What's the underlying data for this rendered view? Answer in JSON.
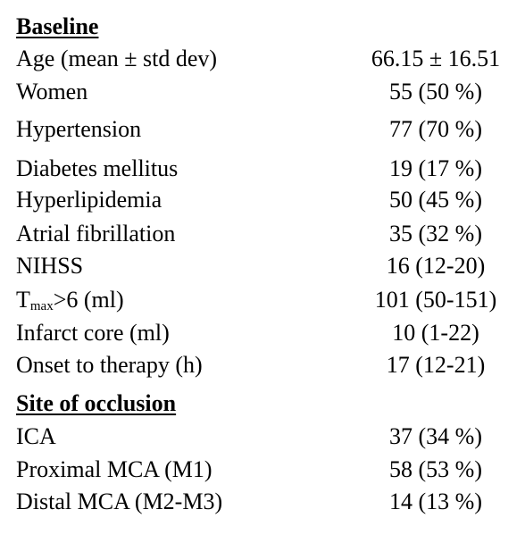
{
  "sections": [
    {
      "heading": "Baseline",
      "rows": [
        {
          "label": "Age (mean ± std dev)",
          "value": "66.15 ± 16.51"
        },
        {
          "label": "Women",
          "value": "55 (50 %)"
        },
        {
          "label": "Hypertension",
          "value": "77 (70 %)"
        },
        {
          "label": "Diabetes mellitus",
          "value": "19 (17 %)"
        },
        {
          "label": "Hyperlipidemia",
          "value": "50 (45 %)"
        },
        {
          "label": "Atrial fibrillation",
          "value": "35 (32 %)"
        },
        {
          "label": "NIHSS",
          "value": "16 (12-20)"
        },
        {
          "label_main": "T",
          "label_sub": "max",
          "label_rest": ">6 (ml)",
          "value": "101 (50-151)"
        },
        {
          "label": "Infarct core (ml)",
          "value": "10 (1-22)"
        },
        {
          "label": "Onset to therapy (h)",
          "value": "17 (12-21)"
        }
      ]
    },
    {
      "heading": "Site of occlusion",
      "rows": [
        {
          "label": "ICA",
          "value": "37 (34 %)"
        },
        {
          "label": "Proximal MCA (M1)",
          "value": "58 (53 %)"
        },
        {
          "label": "Distal MCA (M2-M3)",
          "value": "14 (13 %)"
        }
      ]
    }
  ]
}
